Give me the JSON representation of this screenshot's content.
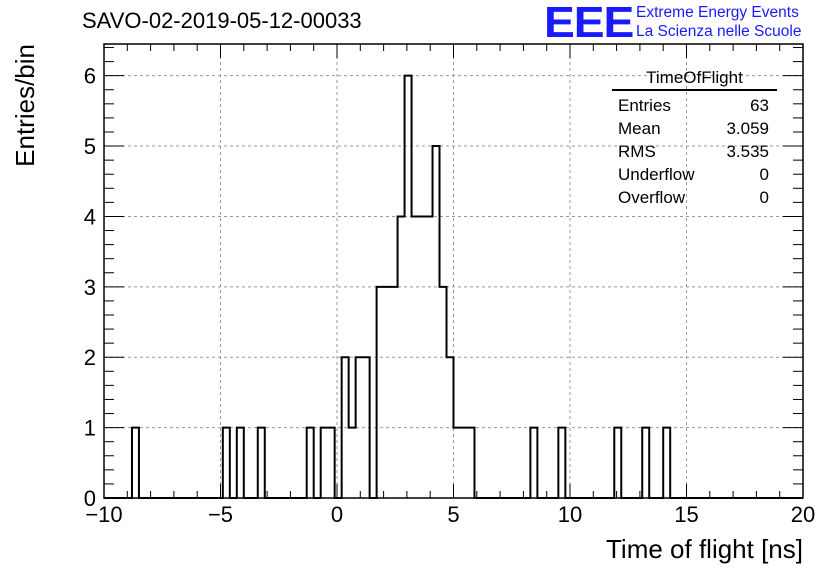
{
  "chart_data": {
    "type": "bar",
    "title": "SAVO-02-2019-05-12-00033",
    "xlabel": "Time of flight [ns]",
    "ylabel": "Entries/bin",
    "xlim": [
      -10,
      20
    ],
    "ylim": [
      0,
      6.45
    ],
    "grid": true,
    "x_ticks": [
      -10,
      -5,
      0,
      5,
      10,
      15,
      20
    ],
    "y_ticks": [
      0,
      1,
      2,
      3,
      4,
      5,
      6
    ],
    "bin_width": 0.3,
    "bins": [
      {
        "x": -8.8,
        "y": 1
      },
      {
        "x": -4.9,
        "y": 1
      },
      {
        "x": -4.3,
        "y": 1
      },
      {
        "x": -3.4,
        "y": 1
      },
      {
        "x": -1.3,
        "y": 1
      },
      {
        "x": -0.7,
        "y": 1
      },
      {
        "x": -0.4,
        "y": 1
      },
      {
        "x": 0.2,
        "y": 2
      },
      {
        "x": 0.5,
        "y": 1
      },
      {
        "x": 0.8,
        "y": 2
      },
      {
        "x": 1.1,
        "y": 2
      },
      {
        "x": 1.7,
        "y": 3
      },
      {
        "x": 2.0,
        "y": 3
      },
      {
        "x": 2.3,
        "y": 3
      },
      {
        "x": 2.6,
        "y": 4
      },
      {
        "x": 2.9,
        "y": 6
      },
      {
        "x": 3.2,
        "y": 4
      },
      {
        "x": 3.5,
        "y": 4
      },
      {
        "x": 3.8,
        "y": 4
      },
      {
        "x": 4.1,
        "y": 5
      },
      {
        "x": 4.4,
        "y": 3
      },
      {
        "x": 4.7,
        "y": 2
      },
      {
        "x": 5.0,
        "y": 1
      },
      {
        "x": 5.3,
        "y": 1
      },
      {
        "x": 5.6,
        "y": 1
      },
      {
        "x": 8.3,
        "y": 1
      },
      {
        "x": 9.5,
        "y": 1
      },
      {
        "x": 11.9,
        "y": 1
      },
      {
        "x": 13.1,
        "y": 1
      },
      {
        "x": 14.0,
        "y": 1
      }
    ]
  },
  "logo": {
    "mark": "EEE",
    "line1": "Extreme Energy Events",
    "line2": "La Scienza nelle Scuole"
  },
  "stats": {
    "name": "TimeOfFlight",
    "rows": [
      {
        "label": "Entries",
        "value": "63"
      },
      {
        "label": "Mean",
        "value": "3.059"
      },
      {
        "label": "RMS",
        "value": "3.535"
      },
      {
        "label": "Underflow",
        "value": "0"
      },
      {
        "label": "Overflow",
        "value": "0"
      }
    ]
  }
}
